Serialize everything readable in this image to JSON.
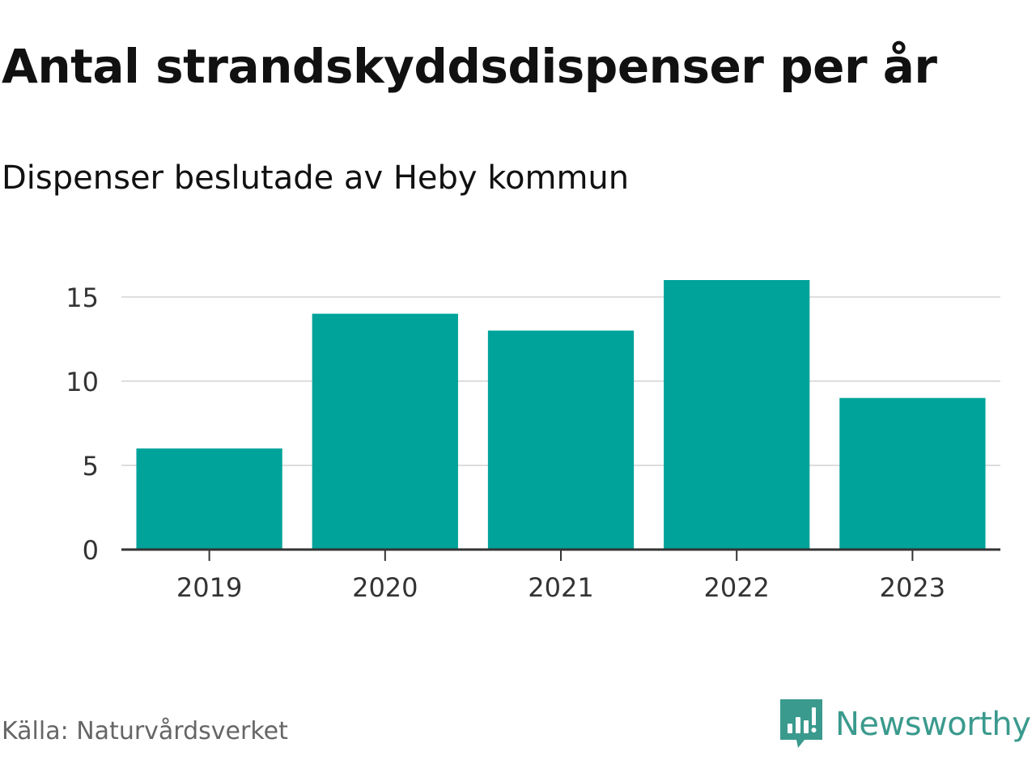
{
  "chart_data": {
    "type": "bar",
    "title": "Antal strandskyddsdispenser per år",
    "subtitle": "Dispenser beslutade av Heby kommun",
    "categories": [
      "2019",
      "2020",
      "2021",
      "2022",
      "2023"
    ],
    "values": [
      6,
      14,
      13,
      16,
      9
    ],
    "xlabel": "",
    "ylabel": "",
    "ylim": [
      0,
      16
    ],
    "yticks": [
      0,
      5,
      10,
      15
    ],
    "grid": true,
    "colors": {
      "bar": "#00a39a",
      "grid": "#dddddd",
      "axis": "#333333"
    }
  },
  "footer": {
    "source": "Källa: Naturvårdsverket",
    "brand": "Newsworthy",
    "brand_icon": "newsworthy-logo-icon",
    "brand_color": "#3a9a8d"
  }
}
